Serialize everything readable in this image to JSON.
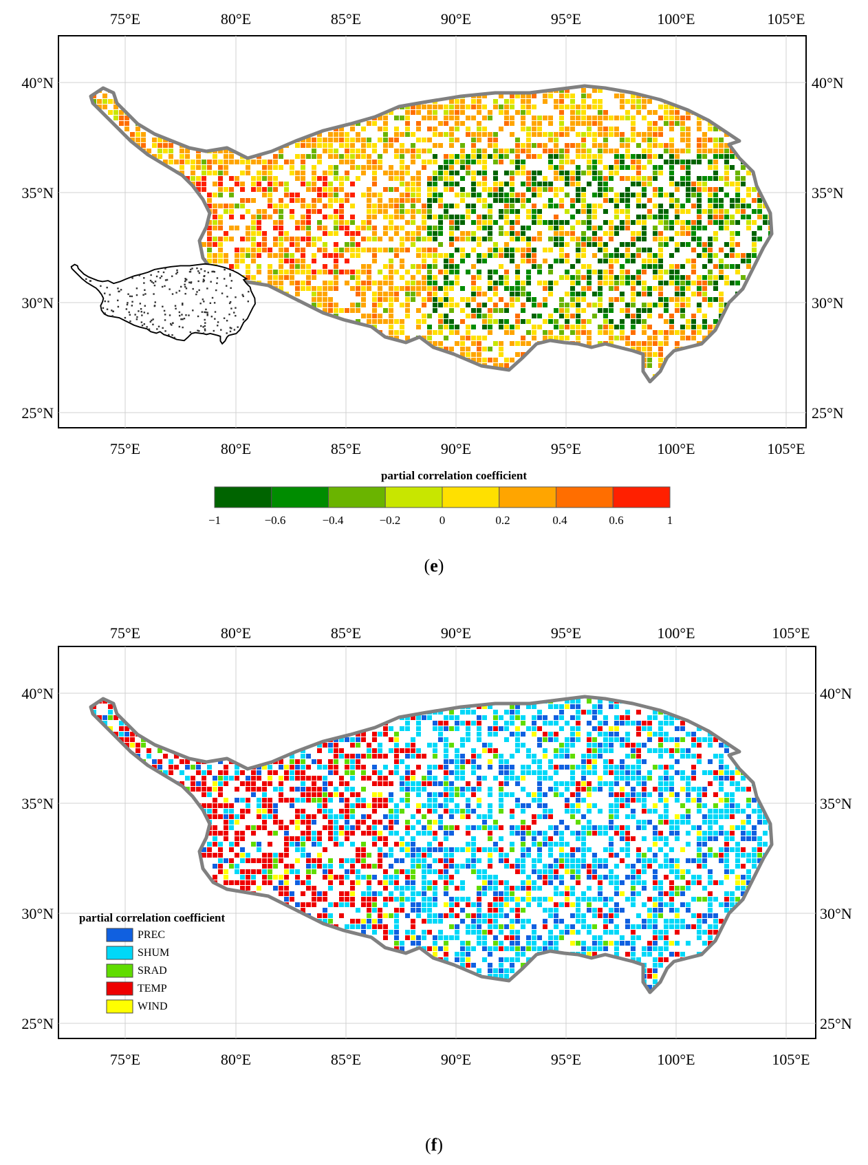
{
  "panel_e": {
    "caption_letter": "e",
    "lon_labels": [
      "75°E",
      "80°E",
      "85°E",
      "90°E",
      "95°E",
      "100°E",
      "105°E"
    ],
    "lat_labels": [
      "40°N",
      "35°N",
      "30°N",
      "25°N"
    ],
    "colorbar": {
      "title": "partial correlation coefficient",
      "tick_labels": [
        "−1",
        "−0.6",
        "−0.4",
        "−0.2",
        "0",
        "0.2",
        "0.4",
        "0.6",
        "1"
      ],
      "colors": [
        "#006400",
        "#008c00",
        "#6ab400",
        "#c8e600",
        "#ffe000",
        "#ffa500",
        "#ff6e00",
        "#ff2000"
      ]
    }
  },
  "panel_f": {
    "caption_letter": "f",
    "lon_labels": [
      "75°E",
      "80°E",
      "85°E",
      "90°E",
      "95°E",
      "100°E",
      "105°E"
    ],
    "lat_labels": [
      "40°N",
      "35°N",
      "30°N",
      "25°N"
    ],
    "legend": {
      "title": "partial correlation coefficient",
      "items": [
        {
          "label": "PREC",
          "color": "#1060e0"
        },
        {
          "label": "SHUM",
          "color": "#00d8f8"
        },
        {
          "label": "SRAD",
          "color": "#60dc00"
        },
        {
          "label": "TEMP",
          "color": "#ee0000"
        },
        {
          "label": "WIND",
          "color": "#ffff00"
        }
      ]
    }
  }
}
